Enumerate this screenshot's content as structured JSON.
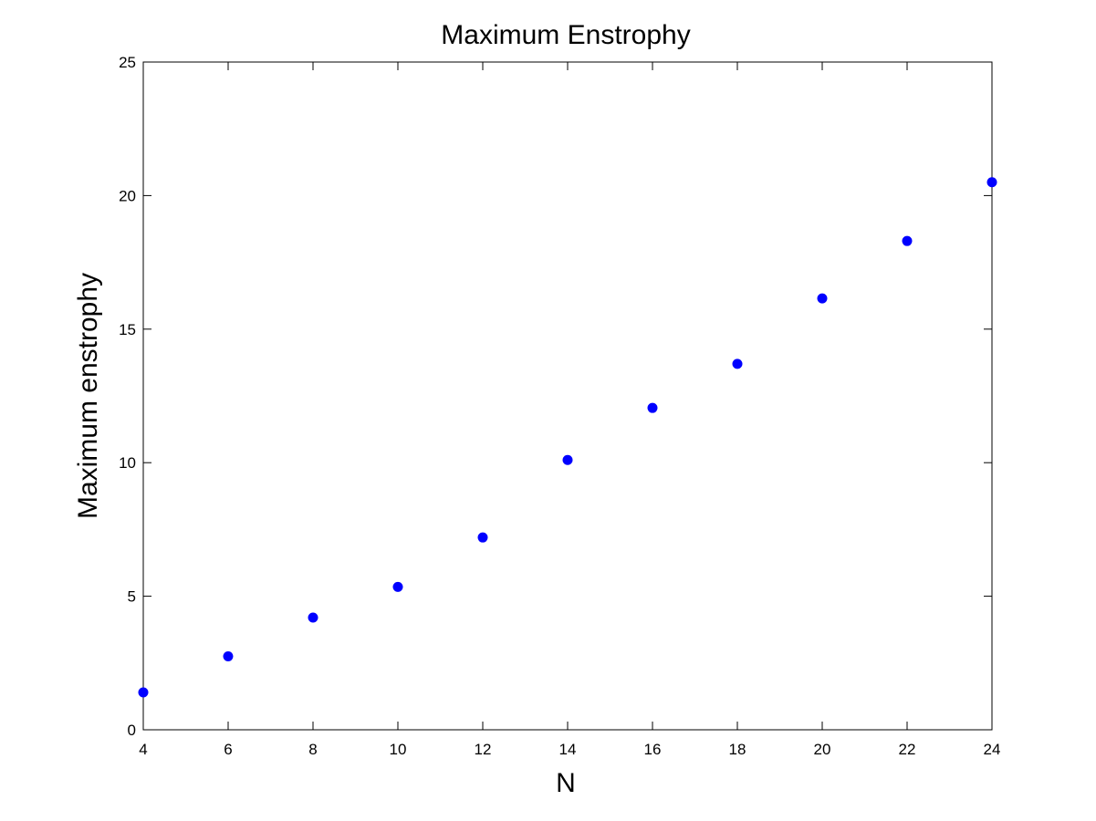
{
  "chart_data": {
    "type": "scatter",
    "title": "Maximum Enstrophy",
    "xlabel": "N",
    "ylabel": "Maximum enstrophy",
    "xlim": [
      4,
      24
    ],
    "ylim": [
      0,
      25
    ],
    "xticks": [
      4,
      6,
      8,
      10,
      12,
      14,
      16,
      18,
      20,
      22,
      24
    ],
    "yticks": [
      0,
      5,
      10,
      15,
      20,
      25
    ],
    "grid": false,
    "marker_color": "#0000ff",
    "series": [
      {
        "x": [
          4,
          6,
          8,
          10,
          12,
          14,
          16,
          18,
          20,
          22,
          24
        ],
        "y": [
          1.4,
          2.75,
          4.2,
          5.35,
          7.2,
          10.1,
          12.05,
          13.7,
          16.15,
          18.3,
          20.5
        ]
      }
    ]
  }
}
